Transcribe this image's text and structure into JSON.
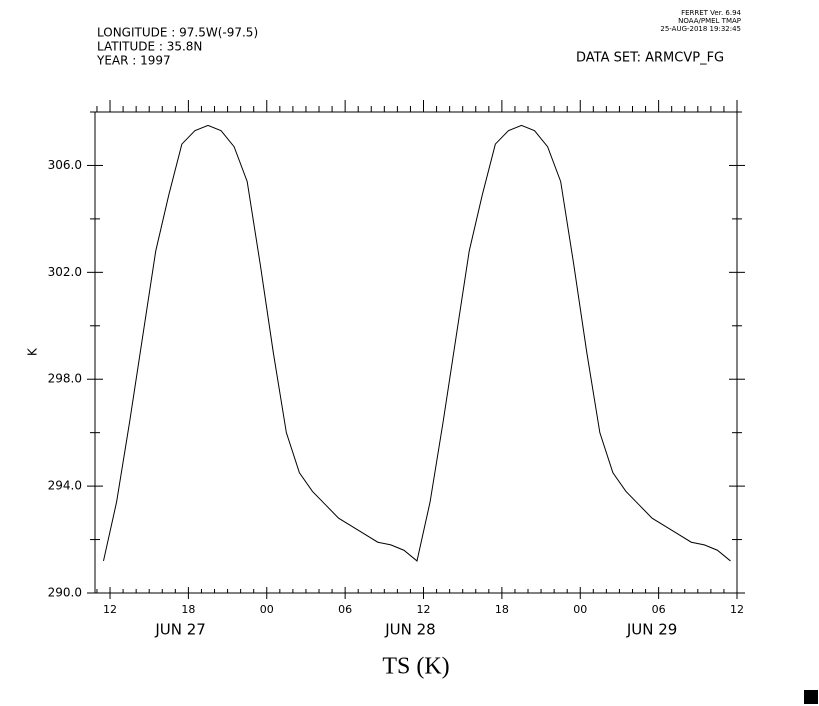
{
  "chart_data": {
    "type": "line",
    "title": "TS (K)",
    "y_label": "K",
    "header_lines": [
      "LONGITUDE : 97.5W(-97.5)",
      "LATITUDE : 35.8N",
      "YEAR : 1997"
    ],
    "dataset": "DATA SET: ARMCVP_FG",
    "stamp_lines": [
      "FERRET Ver. 6.94",
      "NOAA/PMEL TMAP",
      "25-AUG-2018 19:32:45"
    ],
    "x": [
      11.5,
      12.5,
      13.5,
      14.5,
      15.5,
      16.5,
      17.5,
      18.5,
      19.5,
      20.5,
      21.5,
      22.5,
      23.5,
      24.5,
      25.5,
      26.5,
      27.5,
      28.5,
      29.5,
      30.5,
      31.5,
      32.5,
      33.5,
      34.5,
      35.5,
      36.5,
      37.5,
      38.5,
      39.5,
      40.5,
      41.5,
      42.5,
      43.5,
      44.5,
      45.5,
      46.5,
      47.5,
      48.5,
      49.5,
      50.5,
      51.5,
      52.5,
      53.5,
      54.5,
      55.5,
      56.5,
      57.5,
      58.5,
      59.5
    ],
    "series": [
      {
        "name": "TS",
        "color": "#000000",
        "values": [
          291.2,
          293.4,
          296.4,
          299.6,
          302.8,
          304.9,
          306.8,
          307.3,
          307.5,
          307.3,
          306.7,
          305.4,
          302.3,
          299.0,
          296.0,
          294.5,
          293.8,
          293.3,
          292.8,
          292.5,
          292.2,
          291.9,
          291.8,
          291.6,
          291.2,
          293.4,
          296.4,
          299.6,
          302.8,
          304.9,
          306.8,
          307.3,
          307.5,
          307.3,
          306.7,
          305.4,
          302.3,
          299.0,
          296.0,
          294.5,
          293.8,
          293.3,
          292.8,
          292.5,
          292.2,
          291.9,
          291.8,
          291.6,
          291.2
        ]
      }
    ],
    "xlim": [
      10.85,
      60
    ],
    "xticks": [
      {
        "value": 12,
        "label": "12"
      },
      {
        "value": 18,
        "label": "18"
      },
      {
        "value": 24,
        "label": "00"
      },
      {
        "value": 30,
        "label": "06"
      },
      {
        "value": 36,
        "label": "12"
      },
      {
        "value": 42,
        "label": "18"
      },
      {
        "value": 48,
        "label": "00"
      },
      {
        "value": 54,
        "label": "06"
      },
      {
        "value": 60,
        "label": "12"
      }
    ],
    "date_labels": [
      {
        "value": 17.4,
        "label": "JUN 27"
      },
      {
        "value": 35,
        "label": "JUN 28"
      },
      {
        "value": 53.5,
        "label": "JUN 29"
      }
    ],
    "xminor": [
      11,
      13,
      14,
      15,
      16,
      17,
      19,
      20,
      21,
      22,
      23,
      25,
      26,
      27,
      28,
      29,
      31,
      32,
      33,
      34,
      35,
      37,
      38,
      39,
      40,
      41,
      43,
      44,
      45,
      46,
      47,
      49,
      50,
      51,
      52,
      53,
      55,
      56,
      57,
      58,
      59
    ],
    "ylim": [
      290,
      308
    ],
    "yticks": [
      {
        "value": 290,
        "label": "290.0"
      },
      {
        "value": 294,
        "label": "294.0"
      },
      {
        "value": 298,
        "label": "298.0"
      },
      {
        "value": 302,
        "label": "302.0"
      },
      {
        "value": 306,
        "label": "306.0"
      }
    ],
    "yminor": [
      292,
      296,
      300,
      304,
      308
    ]
  }
}
